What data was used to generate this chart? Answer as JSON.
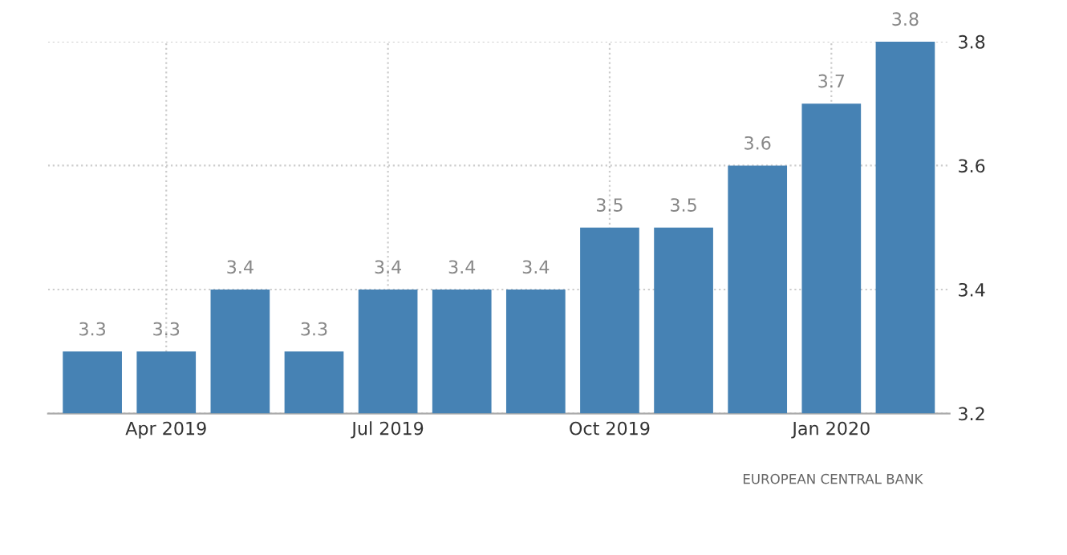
{
  "chart_data": {
    "type": "bar",
    "categories": [
      null,
      "Apr 2019",
      null,
      null,
      "Jul 2019",
      null,
      null,
      "Oct 2019",
      null,
      null,
      "Jan 2020",
      null
    ],
    "values": [
      3.3,
      3.3,
      3.4,
      3.3,
      3.4,
      3.4,
      3.4,
      3.5,
      3.5,
      3.6,
      3.7,
      3.8
    ],
    "color": "#4682b4",
    "ylim": [
      3.2,
      3.8
    ],
    "yticks": [
      3.2,
      3.4,
      3.6,
      3.8
    ],
    "grid": true,
    "data_labels": true,
    "annotations": [
      "EUROPEAN CENTRAL BANK"
    ]
  }
}
